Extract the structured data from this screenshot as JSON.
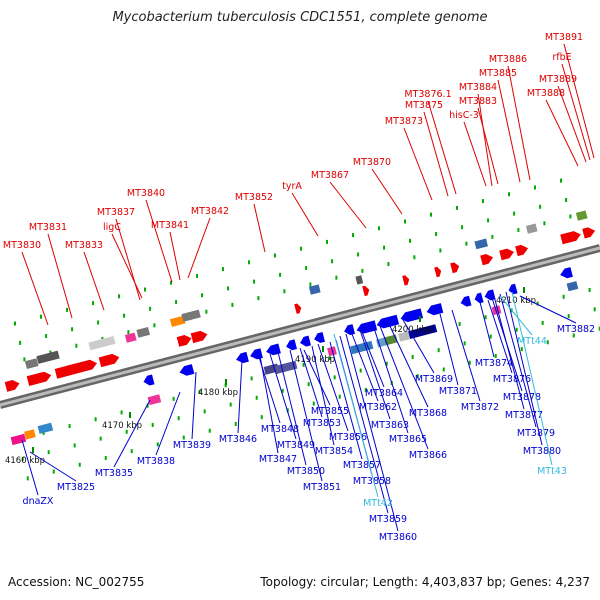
{
  "title": "Mycobacterium tuberculosis CDC1551, complete genome",
  "footer": {
    "accession": "Accession: NC_002755",
    "summary": "Topology: circular; Length: 4,403,837 bp; Genes: 4,237"
  },
  "colors": {
    "forward_label": "#dd0000",
    "reverse_label": "#0000cc",
    "trna_label": "#33bbdd",
    "backbone": "#888888",
    "tick": "#00aa00"
  },
  "ruler": [
    {
      "text": "4160 kbp"
    },
    {
      "text": "4170 kbp"
    },
    {
      "text": "4180 kbp"
    },
    {
      "text": "4190 kbp"
    },
    {
      "text": "4200 kbp"
    },
    {
      "text": "4210 kbp"
    }
  ],
  "top_labels": [
    "MT3830",
    "MT3831",
    "MT3833",
    "MT3837",
    "ligC",
    "MT3840",
    "MT3841",
    "MT3842",
    "MT3852",
    "tyrA",
    "MT3867",
    "MT3870",
    "MT3873",
    "MT3875",
    "MT3876.1",
    "MT3884",
    "MT3883",
    "hisC-3",
    "MT3885",
    "MT3886",
    "MT3891",
    "rfbE",
    "MT3889",
    "MT3888"
  ],
  "bottom_labels": [
    "dnaZX",
    "MT3825",
    "MT3835",
    "MT3838",
    "MT3839",
    "MT3846",
    "MT3848",
    "MT3847",
    "MT3849",
    "MT3850",
    "MT3851",
    "MT3855",
    "MT3853",
    "MT3854",
    "MT3856",
    "MT3857",
    "MT3858",
    "MT3859",
    "MT3860",
    "MT3862",
    "MT3864",
    "MT3863",
    "MT3865",
    "MT3866",
    "MT3868",
    "MT3869",
    "MT3871",
    "MT3872",
    "MT3874",
    "MT3876",
    "MT3878",
    "MT3877",
    "MT3879",
    "MT3880",
    "MT3882"
  ],
  "trna_labels": [
    "MTt42",
    "MTt44",
    "MTt43"
  ]
}
